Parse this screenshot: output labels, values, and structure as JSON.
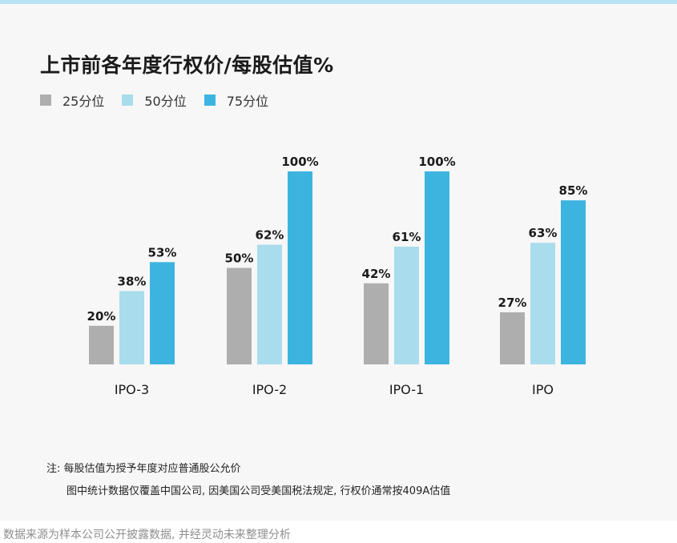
{
  "title": "上市前各年度行权价/每股估值%",
  "colors": {
    "p25": "#aeaeae",
    "p50": "#a9dcec",
    "p75": "#3db4e0",
    "top_rule": "#b9e2f2",
    "panel": "#f7f7f7"
  },
  "chart_data": {
    "type": "bar",
    "title": "上市前各年度行权价/每股估值%",
    "categories": [
      "IPO-3",
      "IPO-2",
      "IPO-1",
      "IPO"
    ],
    "series": [
      {
        "name": "25分位",
        "values": [
          20,
          50,
          42,
          27
        ],
        "labels": [
          "20%",
          "50%",
          "42%",
          "27%"
        ]
      },
      {
        "name": "50分位",
        "values": [
          38,
          62,
          61,
          63
        ],
        "labels": [
          "38%",
          "62%",
          "61%",
          "63%"
        ]
      },
      {
        "name": "75分位",
        "values": [
          53,
          100,
          100,
          85
        ],
        "labels": [
          "53%",
          "100%",
          "100%",
          "85%"
        ]
      }
    ],
    "ylim": [
      0,
      100
    ],
    "grid": false,
    "legend": "top-left"
  },
  "note": {
    "line1": "注: 每股估值为授予年度对应普通股公允价",
    "line2": "图中统计数据仅覆盖中国公司, 因美国公司受美国税法规定, 行权价通常按409A估值"
  },
  "source": "数据来源为样本公司公开披露数据, 并经灵动未来整理分析"
}
